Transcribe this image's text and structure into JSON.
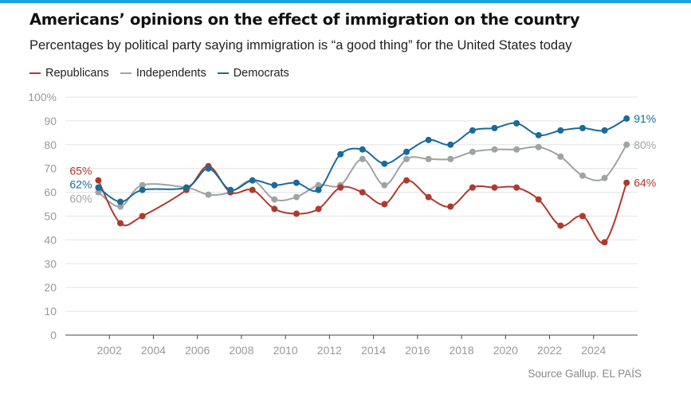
{
  "header": {
    "title": "Americans’ opinions on the effect of immigration on the country",
    "subtitle": "Percentages by political party saying immigration is “a good thing” for the United States today"
  },
  "source": "Source Gallup. EL PAÍS",
  "colors": {
    "republicans": "#b0392e",
    "independents": "#9fa3a4",
    "democrats": "#1b6a9c",
    "accent": "#1aa3dc"
  },
  "chart_data": {
    "type": "line",
    "title": "Americans’ opinions on the effect of immigration on the country",
    "subtitle": "Percentages by political party saying immigration is “a good thing” for the United States today",
    "xlabel": "",
    "ylabel": "",
    "xlim": [
      2000,
      2026
    ],
    "ylim": [
      0,
      100
    ],
    "x_ticks": [
      "2002",
      "2004",
      "2006",
      "2008",
      "2010",
      "2012",
      "2014",
      "2016",
      "2018",
      "2020",
      "2022",
      "2024"
    ],
    "y_ticks": [
      "0",
      "10",
      "20",
      "30",
      "40",
      "50",
      "60",
      "70",
      "80",
      "90",
      "100%"
    ],
    "grid": true,
    "legend": "top-left",
    "x": [
      2001.5,
      2002.5,
      2003.5,
      2005.5,
      2006.5,
      2007.5,
      2008.5,
      2009.5,
      2010.5,
      2011.5,
      2012.5,
      2013.5,
      2014.5,
      2015.5,
      2016.5,
      2017.5,
      2018.5,
      2019.5,
      2020.5,
      2021.5,
      2022.5,
      2023.5,
      2024.5,
      2025.5
    ],
    "series": [
      {
        "name": "Republicans",
        "color": "#b0392e",
        "values": [
          65,
          47,
          50,
          61,
          71,
          60,
          61,
          53,
          51,
          53,
          62,
          60,
          55,
          65,
          58,
          54,
          62,
          62,
          62,
          57,
          46,
          50,
          39,
          64
        ],
        "first_label": "65%",
        "last_label": "64%"
      },
      {
        "name": "Independents",
        "color": "#9fa3a4",
        "values": [
          60,
          54,
          63,
          62,
          59,
          60,
          65,
          57,
          58,
          63,
          63,
          74,
          63,
          74,
          74,
          74,
          77,
          78,
          78,
          79,
          75,
          67,
          66,
          80
        ],
        "first_label": "60%",
        "last_label": "80%"
      },
      {
        "name": "Democrats",
        "color": "#1b6a9c",
        "values": [
          62,
          56,
          61,
          62,
          70,
          61,
          65,
          63,
          64,
          61,
          76,
          78,
          72,
          77,
          82,
          80,
          86,
          87,
          89,
          84,
          86,
          87,
          86,
          91
        ],
        "first_label": "62%",
        "last_label": "91%"
      }
    ]
  }
}
